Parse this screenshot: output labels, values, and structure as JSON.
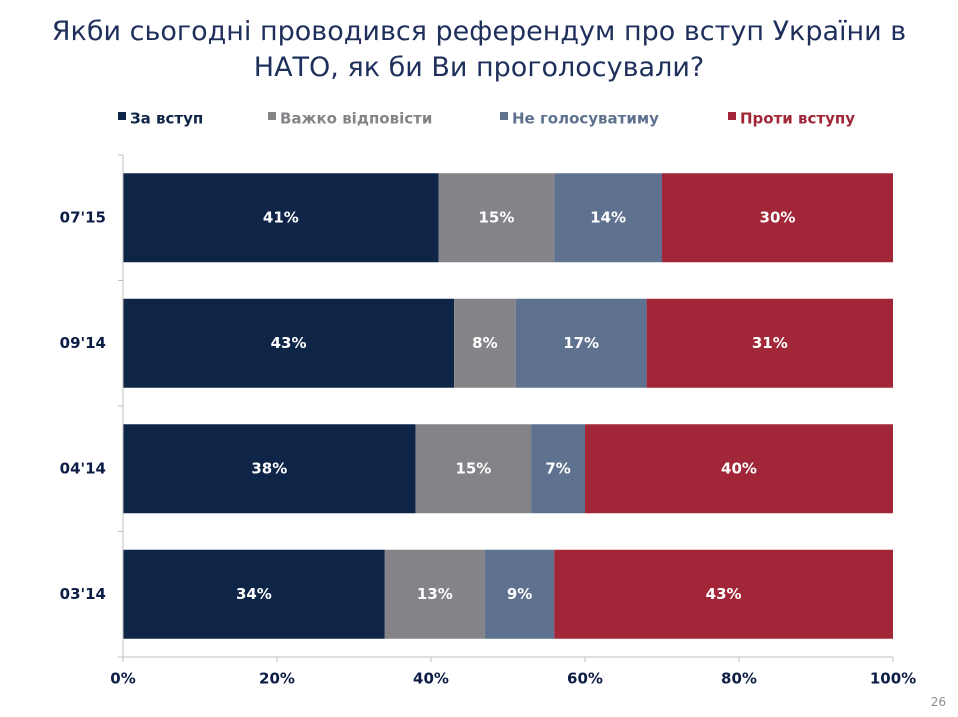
{
  "slide_number": "26",
  "colors": {
    "title": "#1f2f5c",
    "axis_text": "#0c1d45",
    "label_text": "#ffffff",
    "axis_line": "#bfbfbf"
  },
  "chart_data": {
    "type": "bar",
    "orientation": "horizontal",
    "stacked": true,
    "title": "Якби сьогодні проводився референдум про вступ України в НАТО, як би Ви проголосували?",
    "title_lines": [
      "Якби сьогодні проводився референдум про вступ України в",
      "НАТО, як би Ви проголосували?"
    ],
    "xlabel": "",
    "ylabel": "",
    "xlim": [
      0,
      100
    ],
    "legend_position": "top",
    "grid": false,
    "x_ticks": [
      "0%",
      "20%",
      "40%",
      "60%",
      "80%",
      "100%"
    ],
    "categories": [
      "07'15",
      "09'14",
      "04'14",
      "03'14"
    ],
    "series": [
      {
        "name": "За вступ",
        "color": "#0e2548",
        "values": [
          41,
          43,
          38,
          34
        ]
      },
      {
        "name": "Важко відповісти",
        "color": "#858388",
        "values": [
          15,
          8,
          15,
          13
        ]
      },
      {
        "name": "Не голосуватиму",
        "color": "#5e7290",
        "values": [
          14,
          17,
          7,
          9
        ]
      },
      {
        "name": "Проти вступу",
        "color": "#a02638",
        "values": [
          30,
          31,
          40,
          43
        ]
      }
    ]
  }
}
